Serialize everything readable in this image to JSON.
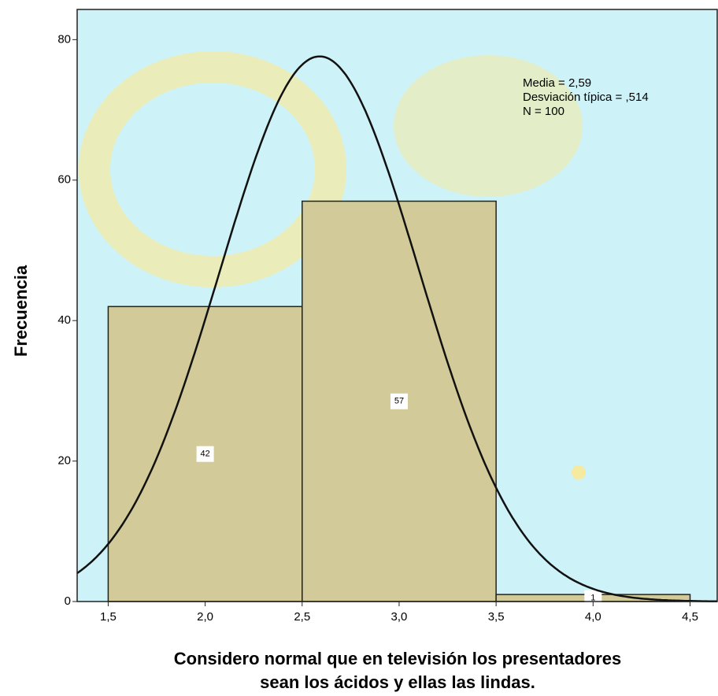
{
  "chart_data": {
    "type": "histogram",
    "bins": [
      1.5,
      2.5,
      3.5,
      4.5
    ],
    "values": [
      42,
      57,
      1
    ],
    "color": "#d2cb99",
    "edge_color": "#222222",
    "background": "#cdf3f8",
    "xlim": [
      1.34,
      4.64
    ],
    "ylim": [
      0,
      84.3
    ],
    "xticks": [
      {
        "value": 1.5,
        "label": "1,5"
      },
      {
        "value": 2.0,
        "label": "2,0"
      },
      {
        "value": 2.5,
        "label": "2,5"
      },
      {
        "value": 3.0,
        "label": "3,0"
      },
      {
        "value": 3.5,
        "label": "3,5"
      },
      {
        "value": 4.0,
        "label": "4,0"
      },
      {
        "value": 4.5,
        "label": "4,5"
      }
    ],
    "yticks": [
      0,
      20,
      40,
      60,
      80
    ],
    "y_label": "Frecuencia",
    "x_label": [
      "Considero normal que en televisión los presentadores",
      "sean los ácidos y ellas las lindas."
    ],
    "stats": [
      {
        "label": "Media = 2,59",
        "value": 2.59
      },
      {
        "label": "Desviación típica = ,514",
        "value": 0.514
      },
      {
        "label": "N = 100",
        "value": 100
      }
    ],
    "normal_curve": true
  }
}
